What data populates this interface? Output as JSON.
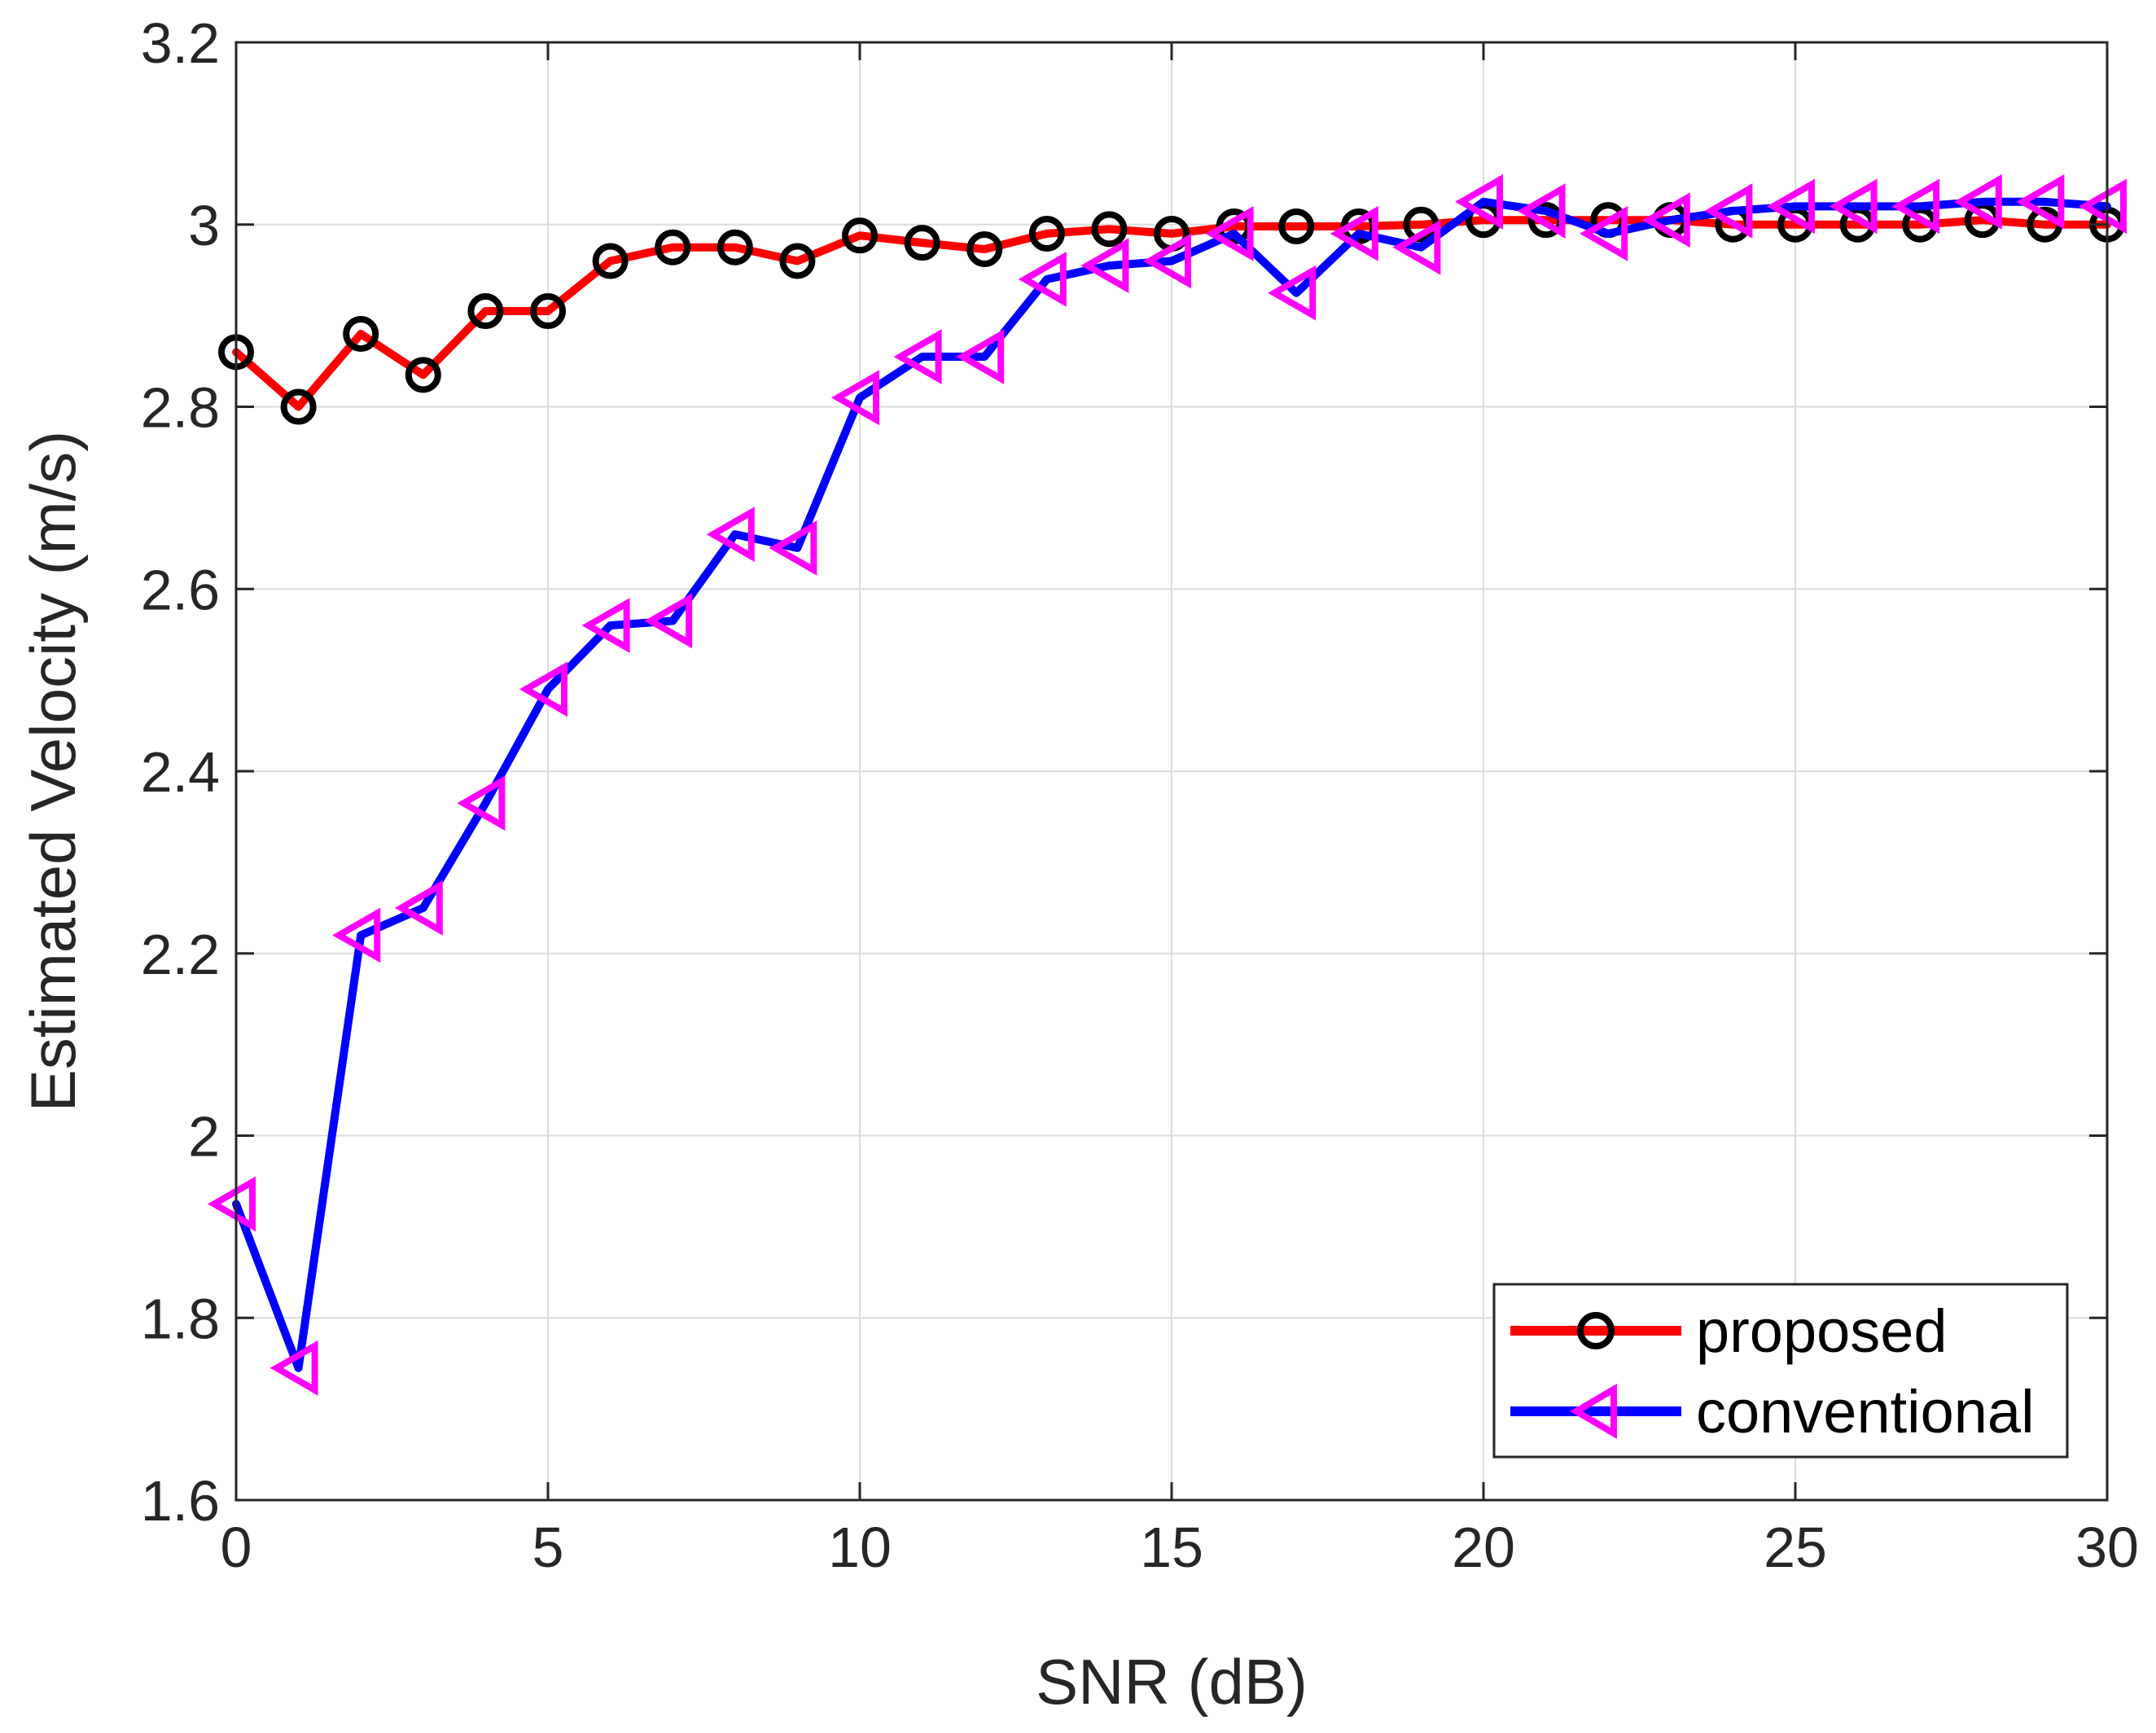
{
  "chart_data": {
    "type": "line",
    "title": "",
    "xlabel": "SNR (dB)",
    "ylabel": "Estimated Velocity (m/s)",
    "xlim": [
      0,
      30
    ],
    "ylim": [
      1.6,
      3.2
    ],
    "xticks": [
      0,
      5,
      10,
      15,
      20,
      25,
      30
    ],
    "xtick_labels": [
      "0",
      "5",
      "10",
      "15",
      "20",
      "25",
      "30"
    ],
    "yticks": [
      1.6,
      1.8,
      2.0,
      2.2,
      2.4,
      2.6,
      2.8,
      3.0,
      3.2
    ],
    "ytick_labels": [
      "1.6",
      "1.8",
      "2",
      "2.2",
      "2.4",
      "2.6",
      "2.8",
      "3",
      "3.2"
    ],
    "grid": true,
    "legend_position": "bottom-right",
    "x": [
      0,
      1,
      2,
      3,
      4,
      5,
      6,
      7,
      8,
      9,
      10,
      11,
      12,
      13,
      14,
      15,
      16,
      17,
      18,
      19,
      20,
      21,
      22,
      23,
      24,
      25,
      26,
      27,
      28,
      29,
      30
    ],
    "series": [
      {
        "name": "proposed",
        "line_color": "#ff0000",
        "marker": "circle",
        "marker_color": "#000000",
        "values": [
          2.86,
          2.8,
          2.88,
          2.835,
          2.905,
          2.905,
          2.96,
          2.975,
          2.975,
          2.96,
          2.988,
          2.98,
          2.973,
          2.99,
          2.995,
          2.99,
          2.998,
          2.998,
          2.998,
          3.0,
          3.005,
          3.005,
          3.005,
          3.005,
          3.0,
          3.0,
          3.0,
          3.0,
          3.005,
          3.0,
          3.0
        ]
      },
      {
        "name": "conventional",
        "line_color": "#0000ff",
        "marker": "triangle-left",
        "marker_color": "#ff00ff",
        "values": [
          1.925,
          1.745,
          2.22,
          2.25,
          2.365,
          2.49,
          2.56,
          2.565,
          2.66,
          2.645,
          2.81,
          2.855,
          2.855,
          2.94,
          2.955,
          2.96,
          2.99,
          2.925,
          2.99,
          2.975,
          3.025,
          3.015,
          2.99,
          3.005,
          3.015,
          3.02,
          3.02,
          3.02,
          3.025,
          3.025,
          3.02
        ]
      }
    ]
  }
}
